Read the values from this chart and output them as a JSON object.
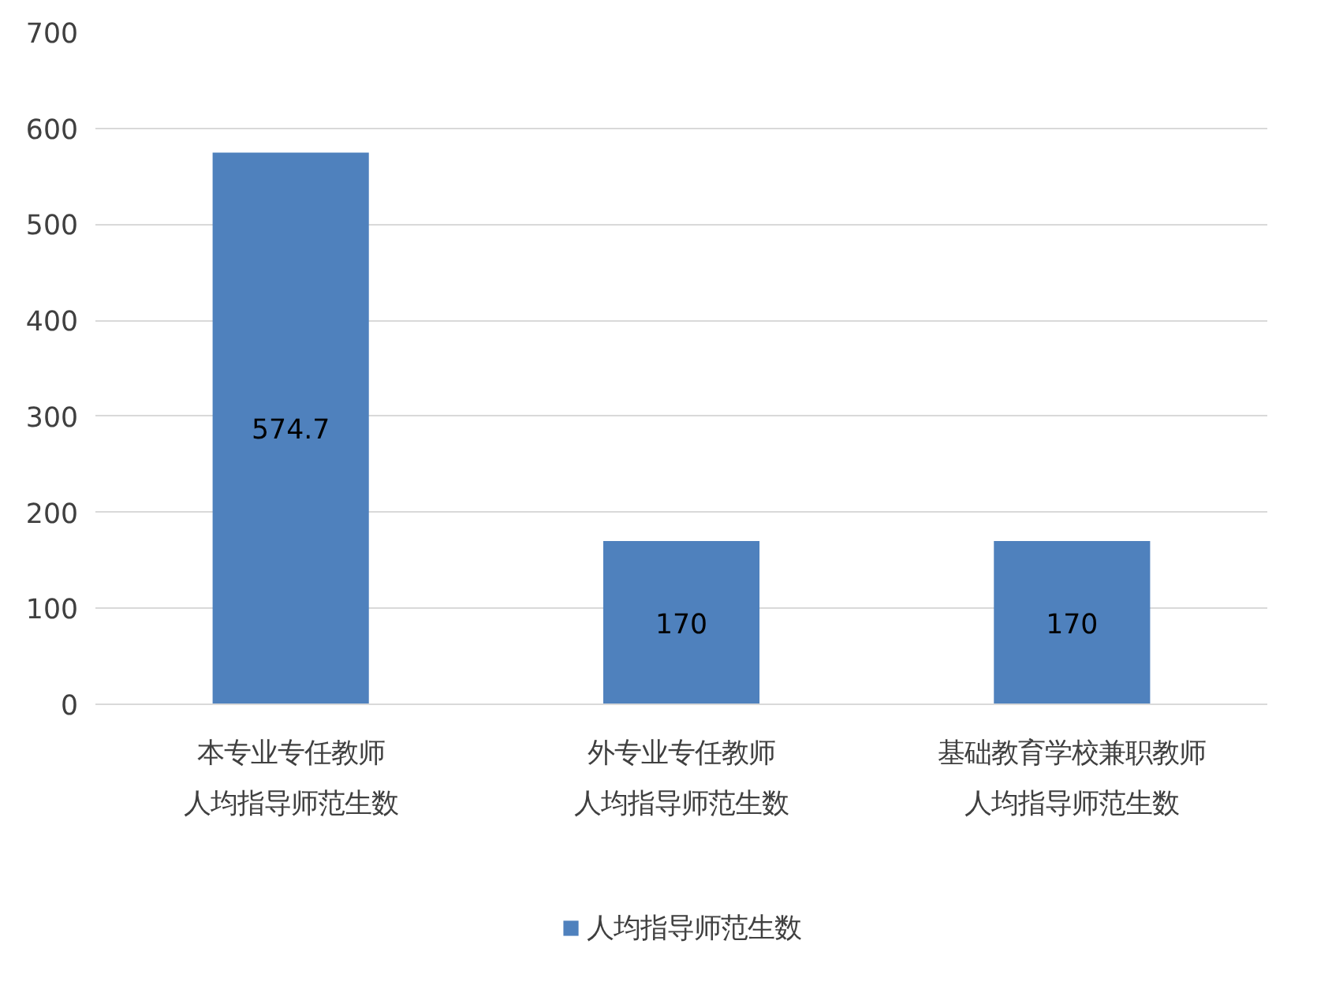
{
  "chart_data": {
    "type": "bar",
    "categories": [
      "本专业专任教师人均指导师范生数",
      "外专业专任教师人均指导师范生数",
      "基础教育学校兼职教师人均指导师范生数"
    ],
    "series": [
      {
        "name": "人均指导师范生数",
        "color": "#4f81bd",
        "values": [
          574.7,
          170,
          170
        ]
      }
    ],
    "ylim": [
      0,
      700
    ],
    "yticks": [
      0,
      100,
      200,
      300,
      400,
      500,
      600,
      700
    ],
    "grid": "y",
    "legend": "bottom",
    "data_labels": true
  }
}
